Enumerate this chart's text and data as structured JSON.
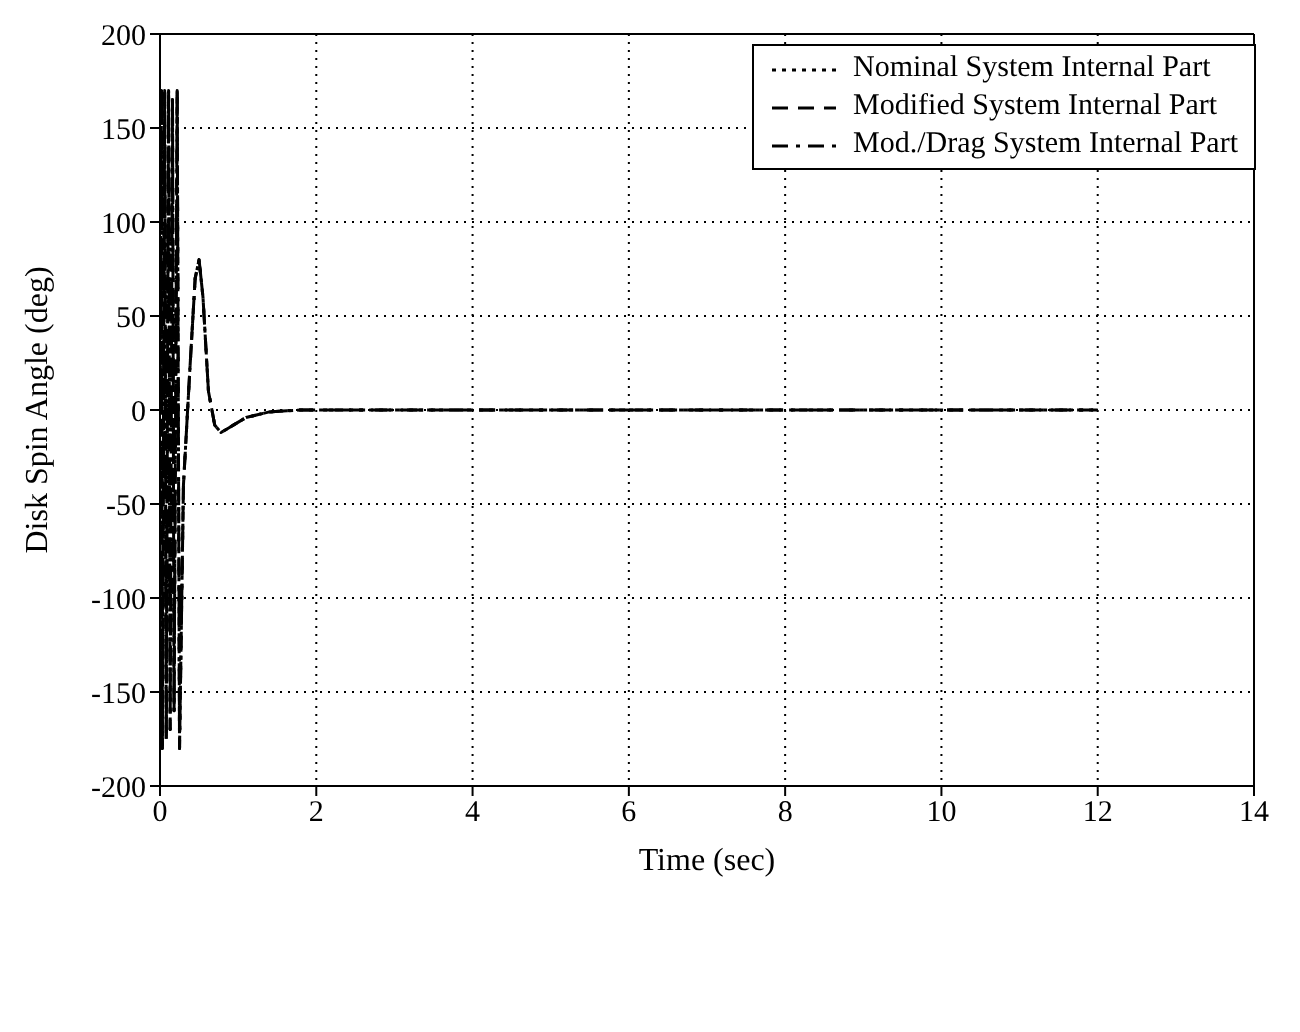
{
  "chart_data": {
    "type": "line",
    "xlabel": "Time (sec)",
    "ylabel": "Disk Spin Angle (deg)",
    "xlim": [
      0,
      14
    ],
    "xticks": [
      0,
      2,
      4,
      6,
      8,
      10,
      12,
      14
    ],
    "ylim": [
      -200,
      200
    ],
    "yticks": [
      -200,
      -150,
      -100,
      -50,
      0,
      50,
      100,
      150,
      200
    ],
    "grid": true,
    "legend": "top right",
    "marker": "none",
    "x": [
      0,
      0.02,
      0.03,
      0.06,
      0.08,
      0.11,
      0.13,
      0.16,
      0.18,
      0.22,
      0.25,
      0.3,
      0.38,
      0.45,
      0.5,
      0.55,
      0.62,
      0.7,
      0.78,
      0.9,
      1.1,
      1.4,
      1.8,
      2.5,
      12
    ],
    "series": [
      {
        "name": "Nominal System Internal Part",
        "color": "#000000",
        "line_style": "dotted",
        "values": [
          0,
          170,
          -180,
          170,
          -175,
          170,
          -170,
          165,
          -160,
          170,
          -180,
          -40,
          20,
          70,
          80,
          60,
          10,
          -8,
          -12,
          -9,
          -4,
          -1,
          0,
          0,
          0
        ]
      },
      {
        "name": "Modified System Internal Part",
        "color": "#000000",
        "line_style": "dashed",
        "values": [
          0,
          170,
          -180,
          170,
          -175,
          170,
          -170,
          165,
          -160,
          170,
          -180,
          -40,
          20,
          70,
          80,
          60,
          10,
          -8,
          -12,
          -9,
          -4,
          -1,
          0,
          0,
          0
        ]
      },
      {
        "name": "Mod./Drag System Internal Part",
        "color": "#000000",
        "line_style": "dashdot",
        "values": [
          0,
          170,
          -180,
          170,
          -175,
          170,
          -170,
          165,
          -160,
          170,
          -180,
          -40,
          20,
          70,
          80,
          60,
          10,
          -8,
          -12,
          -9,
          -4,
          -1,
          0,
          0,
          0
        ]
      }
    ]
  }
}
